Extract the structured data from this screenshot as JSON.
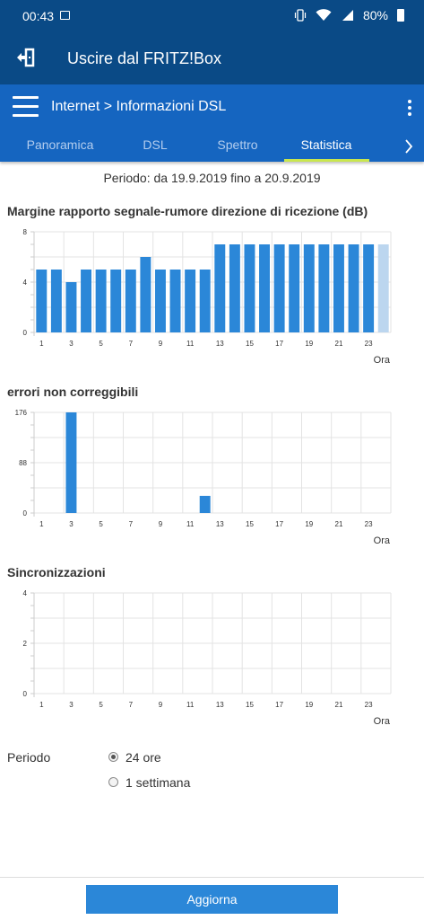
{
  "status_bar": {
    "time": "00:43",
    "battery": "80%",
    "icons": [
      "image-icon",
      "vibrate-icon",
      "wifi-icon",
      "signal-icon",
      "battery-icon"
    ]
  },
  "app_bar": {
    "exit_icon": "exit-icon",
    "title": "Uscire dal FRITZ!Box"
  },
  "nav": {
    "breadcrumb": "Internet > Informazioni DSL",
    "tabs": [
      {
        "label": "Panoramica",
        "active": false
      },
      {
        "label": "DSL",
        "active": false
      },
      {
        "label": "Spettro",
        "active": false
      },
      {
        "label": "Statistica",
        "active": true
      }
    ],
    "accent": "#c9e64e"
  },
  "period_text": "Periodo: da 19.9.2019 fino a 20.9.2019",
  "chart_data": [
    {
      "type": "bar",
      "title": "Margine rapporto segnale-rumore direzione di ricezione (dB)",
      "xlabel": "Ora",
      "x": [
        1,
        2,
        3,
        4,
        5,
        6,
        7,
        8,
        9,
        10,
        11,
        12,
        13,
        14,
        15,
        16,
        17,
        18,
        19,
        20,
        21,
        22,
        23,
        24
      ],
      "values": [
        5,
        5,
        4,
        5,
        5,
        5,
        5,
        6,
        5,
        5,
        5,
        5,
        7,
        7,
        7,
        7,
        7,
        7,
        7,
        7,
        7,
        7,
        7,
        7
      ],
      "highlight_last_light": true,
      "ylim": [
        0,
        8
      ],
      "yticks": [
        0,
        4,
        8
      ],
      "xticks": [
        1,
        3,
        5,
        7,
        9,
        11,
        13,
        15,
        17,
        19,
        21,
        23
      ],
      "color": "#2b87d8",
      "light_color": "#bcd6ef"
    },
    {
      "type": "bar",
      "title": "errori non correggibili",
      "xlabel": "Ora",
      "x": [
        1,
        2,
        3,
        4,
        5,
        6,
        7,
        8,
        9,
        10,
        11,
        12,
        13,
        14,
        15,
        16,
        17,
        18,
        19,
        20,
        21,
        22,
        23,
        24
      ],
      "values": [
        0,
        0,
        176,
        0,
        0,
        0,
        0,
        0,
        0,
        0,
        0,
        30,
        0,
        0,
        0,
        0,
        0,
        0,
        0,
        0,
        0,
        0,
        0,
        0
      ],
      "ylim": [
        0,
        176
      ],
      "yticks": [
        0,
        88,
        176
      ],
      "xticks": [
        1,
        3,
        5,
        7,
        9,
        11,
        13,
        15,
        17,
        19,
        21,
        23
      ],
      "color": "#2b87d8"
    },
    {
      "type": "bar",
      "title": "Sincronizzazioni",
      "xlabel": "Ora",
      "x": [
        1,
        2,
        3,
        4,
        5,
        6,
        7,
        8,
        9,
        10,
        11,
        12,
        13,
        14,
        15,
        16,
        17,
        18,
        19,
        20,
        21,
        22,
        23,
        24
      ],
      "values": [
        0,
        0,
        0,
        0,
        0,
        0,
        0,
        0,
        0,
        0,
        0,
        0,
        0,
        0,
        0,
        0,
        0,
        0,
        0,
        0,
        0,
        0,
        0,
        0
      ],
      "ylim": [
        0,
        4
      ],
      "yticks": [
        0,
        2,
        4
      ],
      "xticks": [
        1,
        3,
        5,
        7,
        9,
        11,
        13,
        15,
        17,
        19,
        21,
        23
      ],
      "color": "#2b87d8"
    }
  ],
  "options": {
    "label": "Periodo",
    "choices": [
      {
        "label": "24 ore",
        "checked": true
      },
      {
        "label": "1 settimana",
        "checked": false
      }
    ]
  },
  "refresh_button": "Aggiorna"
}
